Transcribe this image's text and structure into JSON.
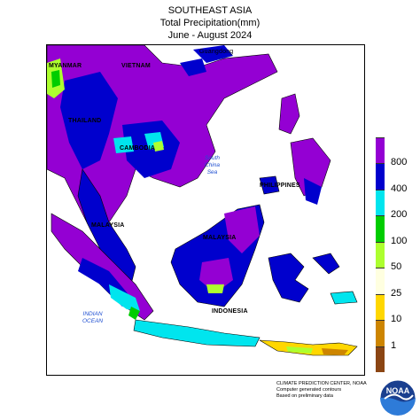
{
  "header": {
    "title": "SOUTHEAST ASIA",
    "subtitle": "Total Precipitation(mm)",
    "period": "June - August 2024"
  },
  "map_labels": {
    "myanmar": "MYANMAR",
    "vietnam": "VIETNAM",
    "guangdong": "Guangdong",
    "thailand": "THAILAND",
    "cambodia": "CAMBODIA",
    "philippines": "PHILIPPINES",
    "malaysia_west": "MALAYSIA",
    "malaysia_east": "MALAYSIA",
    "indonesia": "INDONESIA"
  },
  "sea_labels": {
    "south_china_sea": "South\nChina\nSea",
    "indian_ocean": "INDIAN\nOCEAN"
  },
  "legend": {
    "labels": [
      "800",
      "400",
      "200",
      "100",
      "50",
      "25",
      "10",
      "1"
    ],
    "colors": [
      "#9400d3",
      "#0000cd",
      "#00e5ee",
      "#00cd00",
      "#adff2f",
      "#ffffe0",
      "#ffd700",
      "#cd8500",
      "#8b4513"
    ]
  },
  "footer": {
    "line1": "CLIMATE PREDICTION CENTER, NOAA",
    "line2": "Computer generated contours",
    "line3": "Based on preliminary data"
  },
  "logo": {
    "text": "NOAA"
  }
}
